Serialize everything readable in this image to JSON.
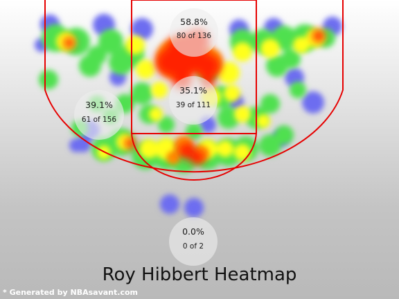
{
  "chart_data": {
    "type": "heatmap",
    "title": "Roy Hibbert Heatmap",
    "zones": [
      {
        "name": "Restricted area",
        "percentage": "58.8%",
        "made": 80,
        "attempts": 136,
        "label": "80 of 136"
      },
      {
        "name": "Paint (non-RA)",
        "percentage": "35.1%",
        "made": 39,
        "attempts": 111,
        "label": "39 of 111"
      },
      {
        "name": "Mid-range",
        "percentage": "39.1%",
        "made": 61,
        "attempts": 156,
        "label": "61 of 156"
      },
      {
        "name": "Backcourt",
        "percentage": "0.0%",
        "made": 0,
        "attempts": 2,
        "label": "0 of 2"
      }
    ],
    "colors": {
      "cold": "#6d6df0",
      "cool": "#4fe04f",
      "warm": "#ffff1e",
      "hot": "#ff2200",
      "court_lines": "#e60000"
    }
  },
  "credit": "* Generated by NBAsavant.com"
}
